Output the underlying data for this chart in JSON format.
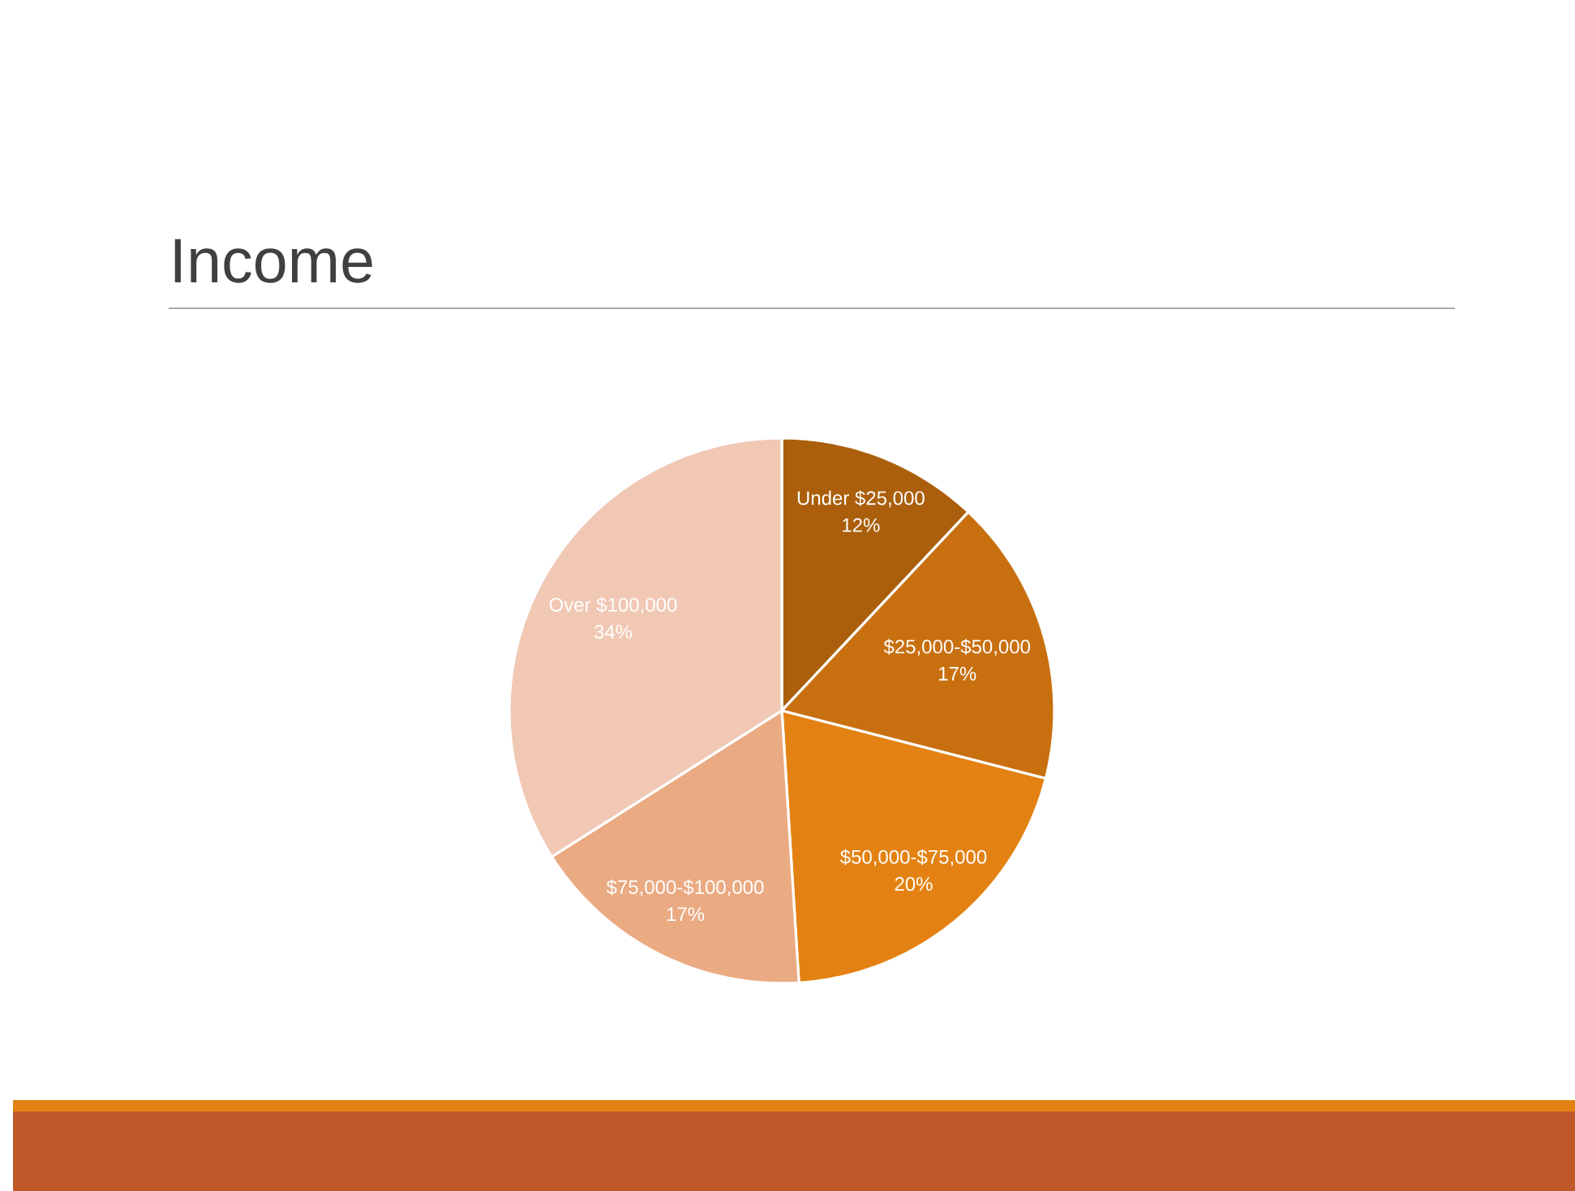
{
  "chart_data": {
    "type": "pie",
    "title": "Income",
    "categories": [
      "Under $25,000",
      "$25,000-$50,000",
      "$50,000-$75,000",
      "$75,000-$100,000",
      "Over $100,000"
    ],
    "values": [
      12,
      17,
      20,
      17,
      34
    ],
    "value_labels": [
      "12%",
      "17%",
      "20%",
      "17%",
      "34%"
    ],
    "colors": [
      "#ab5f0c",
      "#c87010",
      "#e38212",
      "#eaaa82",
      "#f0c8b4"
    ]
  }
}
